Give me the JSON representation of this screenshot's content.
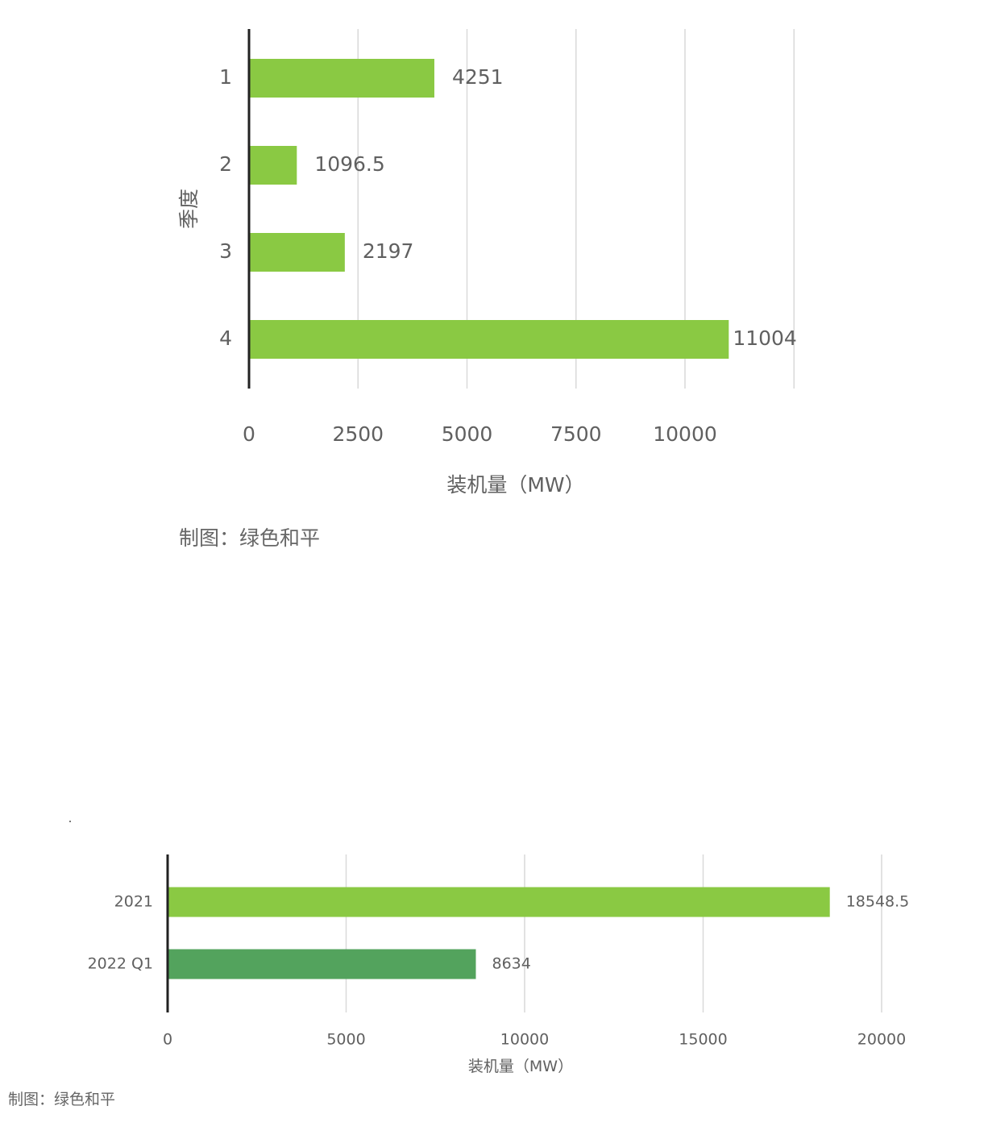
{
  "chart_data": [
    {
      "type": "bar",
      "orientation": "horizontal",
      "categories": [
        "1",
        "2",
        "3",
        "4"
      ],
      "values": [
        4251,
        1096.5,
        2197,
        11004
      ],
      "value_labels": [
        "4251",
        "1096.5",
        "2197",
        "11004"
      ],
      "ylabel": "季度",
      "xlabel": "装机量（MW）",
      "xticks": [
        "0",
        "2500",
        "5000",
        "7500",
        "10000"
      ],
      "xlim": [
        0,
        12500
      ],
      "grid": true,
      "colors": [
        "#8ac943",
        "#8ac943",
        "#8ac943",
        "#8ac943"
      ],
      "credit": "制图：绿色和平"
    },
    {
      "type": "bar",
      "orientation": "horizontal",
      "categories": [
        "2021",
        "2022 Q1"
      ],
      "values": [
        18548.5,
        8634
      ],
      "value_labels": [
        "18548.5",
        "8634"
      ],
      "xlabel": "装机量（MW）",
      "xticks": [
        "0",
        "5000",
        "10000",
        "15000",
        "20000"
      ],
      "xlim": [
        0,
        20000
      ],
      "grid": true,
      "colors": [
        "#8ac943",
        "#53a35d"
      ],
      "credit": "制图：绿色和平"
    }
  ]
}
